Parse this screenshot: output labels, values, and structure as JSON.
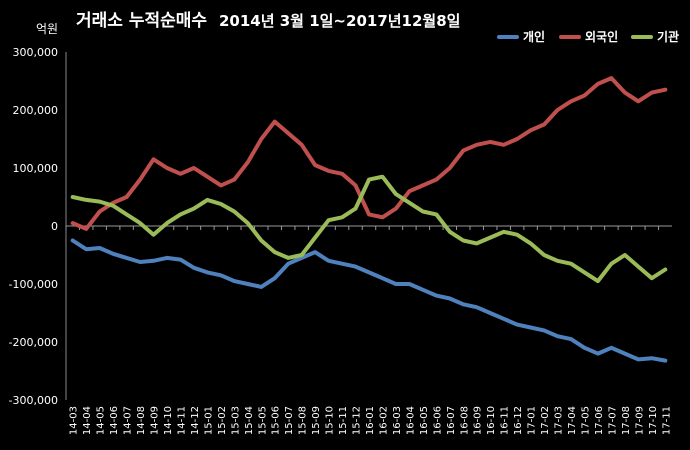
{
  "chart_data": {
    "type": "line",
    "title": "거래소 누적순매수",
    "subtitle": "2014년 3월 1일~2017년12월8일",
    "ylabel": "억원",
    "xlabel": "",
    "ylim": [
      -300000,
      300000
    ],
    "yticks": [
      300000,
      200000,
      100000,
      0,
      -100000,
      -200000,
      -300000
    ],
    "ytick_labels": [
      "300,000",
      "200,000",
      "100,000",
      "0",
      "-100,000",
      "-200,000",
      "-300,000"
    ],
    "categories": [
      "14-03",
      "14-04",
      "14-05",
      "14-06",
      "14-07",
      "14-08",
      "14-09",
      "14-10",
      "14-11",
      "14-12",
      "15-01",
      "15-02",
      "15-03",
      "15-04",
      "15-05",
      "15-06",
      "15-07",
      "15-08",
      "15-09",
      "15-10",
      "15-11",
      "15-12",
      "16-01",
      "16-02",
      "16-03",
      "16-04",
      "16-05",
      "16-06",
      "16-07",
      "16-08",
      "16-09",
      "16-10",
      "16-11",
      "16-12",
      "17-01",
      "17-02",
      "17-03",
      "17-04",
      "17-05",
      "17-06",
      "17-07",
      "17-08",
      "17-09",
      "17-10",
      "17-11"
    ],
    "grid": false,
    "legend_position": "top-right",
    "series": [
      {
        "name": "개인",
        "color": "#4f81bd",
        "values": [
          -25000,
          -40000,
          -38000,
          -48000,
          -55000,
          -62000,
          -60000,
          -55000,
          -58000,
          -72000,
          -80000,
          -85000,
          -95000,
          -100000,
          -105000,
          -90000,
          -65000,
          -55000,
          -45000,
          -60000,
          -65000,
          -70000,
          -80000,
          -90000,
          -100000,
          -100000,
          -110000,
          -120000,
          -125000,
          -135000,
          -140000,
          -150000,
          -160000,
          -170000,
          -175000,
          -180000,
          -190000,
          -195000,
          -210000,
          -220000,
          -210000,
          -220000,
          -230000,
          -228000,
          -232000
        ]
      },
      {
        "name": "외국인",
        "color": "#c0504d",
        "values": [
          5000,
          -5000,
          25000,
          40000,
          50000,
          80000,
          115000,
          100000,
          90000,
          100000,
          85000,
          70000,
          80000,
          110000,
          150000,
          180000,
          160000,
          140000,
          105000,
          95000,
          90000,
          70000,
          20000,
          15000,
          30000,
          60000,
          70000,
          80000,
          100000,
          130000,
          140000,
          145000,
          140000,
          150000,
          165000,
          175000,
          200000,
          215000,
          225000,
          245000,
          255000,
          230000,
          215000,
          230000,
          235000
        ]
      },
      {
        "name": "기관",
        "color": "#9bbb59",
        "values": [
          50000,
          45000,
          42000,
          35000,
          20000,
          5000,
          -15000,
          5000,
          20000,
          30000,
          45000,
          38000,
          25000,
          5000,
          -25000,
          -45000,
          -55000,
          -50000,
          -20000,
          10000,
          15000,
          30000,
          80000,
          85000,
          55000,
          40000,
          25000,
          20000,
          -10000,
          -25000,
          -30000,
          -20000,
          -10000,
          -15000,
          -30000,
          -50000,
          -60000,
          -65000,
          -80000,
          -95000,
          -65000,
          -50000,
          -70000,
          -90000,
          -75000
        ]
      }
    ]
  }
}
